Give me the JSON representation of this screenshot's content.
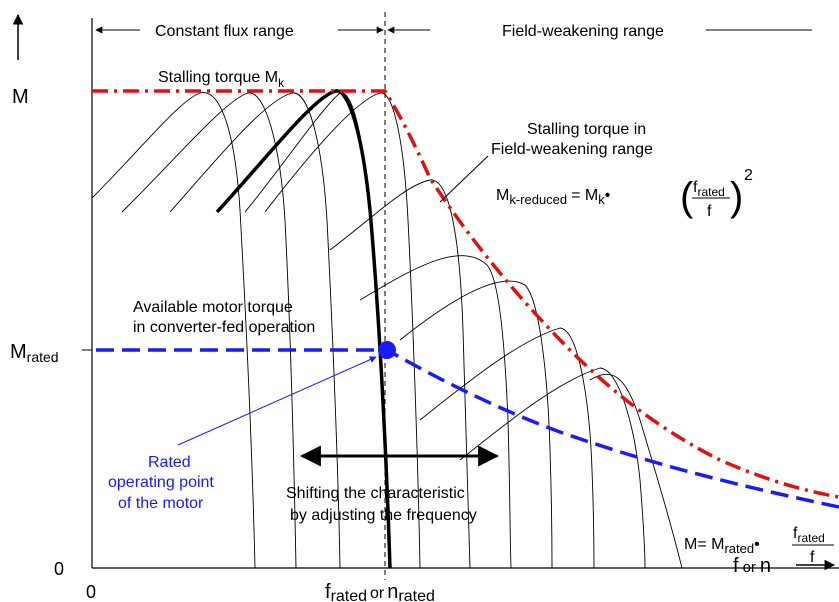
{
  "axes": {
    "y_label": "M",
    "x_label_main": "f",
    "x_label_or": "or",
    "x_label_n": "n",
    "origin_label": "0",
    "y_zero_label": "0",
    "m_rated_main": "M",
    "m_rated_sub": "rated"
  },
  "x_tick": {
    "f_main": "f",
    "f_sub": "rated",
    "or_text": "or",
    "n_main": "n",
    "n_sub": "rated"
  },
  "ranges": {
    "constant_flux": "Constant flux range",
    "field_weakening": "Field-weakening range"
  },
  "labels": {
    "stalling_main": "Stalling torque M",
    "stalling_sub": "k",
    "stalling_fw_line1": "Stalling torque in",
    "stalling_fw_line2": "Field-weakening range",
    "available_line1": "Available motor torque",
    "available_line2": "in converter-fed operation",
    "rated_point_line1": "Rated",
    "rated_point_line2": "operating point",
    "rated_point_line3": "of the  motor",
    "shift_line1": "Shifting the characteristic",
    "shift_line2": "by adjusting the frequency"
  },
  "formula_reduced": {
    "lhs_main": "M",
    "lhs_sub": "k-reduced",
    "eq": "= M",
    "m_sub": "k",
    "dot": "•",
    "num_main": "f",
    "num_sub": "rated",
    "den": "f",
    "exp": "2"
  },
  "formula_rated": {
    "lhs": "M= M",
    "m_sub": "rated",
    "dot": "•",
    "num_main": "f",
    "num_sub": "rated",
    "den": "f"
  },
  "colors": {
    "stalling_curve": "#e01010",
    "available_torque": "#1a1aff",
    "rated_point": "#1a1aff",
    "rated_label": "#1a1aff"
  }
}
